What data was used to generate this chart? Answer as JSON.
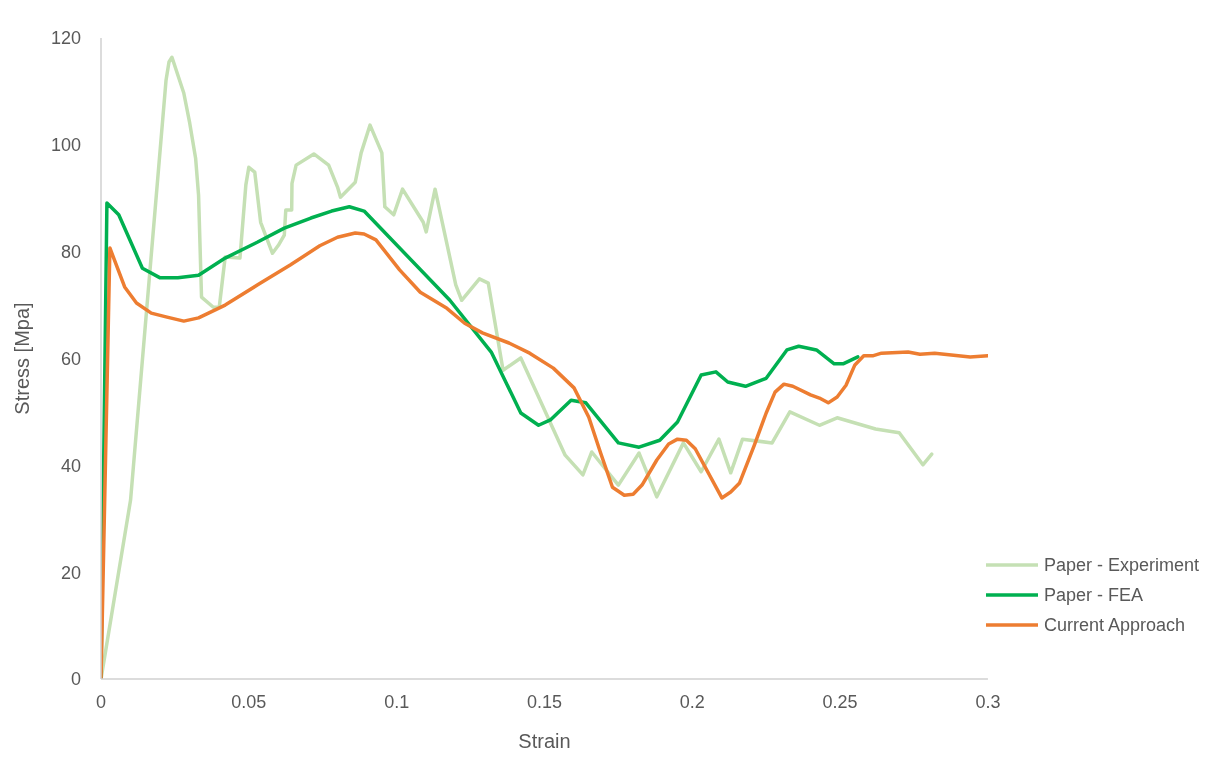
{
  "chart_data": {
    "type": "line",
    "xlabel": "Strain",
    "ylabel": "Stress [Mpa]",
    "xlim": [
      0,
      0.3
    ],
    "xticks": [
      0,
      0.05,
      0.1,
      0.15,
      0.2,
      0.25,
      0.3
    ],
    "ylim": [
      0,
      120
    ],
    "yticks": [
      0,
      20,
      40,
      60,
      80,
      100,
      120
    ],
    "grid": false,
    "legend": "bottom right",
    "series": [
      {
        "name": "Paper - Experiment",
        "color": "#c5e0b4",
        "x": [
          0,
          0.01,
          0.022,
          0.023,
          0.024,
          0.028,
          0.03,
          0.032,
          0.033,
          0.034,
          0.038,
          0.04,
          0.042,
          0.047,
          0.049,
          0.05,
          0.052,
          0.054,
          0.058,
          0.06,
          0.062,
          0.0625,
          0.0645,
          0.0646,
          0.066,
          0.072,
          0.077,
          0.08,
          0.081,
          0.086,
          0.088,
          0.091,
          0.095,
          0.096,
          0.099,
          0.102,
          0.109,
          0.11,
          0.113,
          0.12,
          0.122,
          0.128,
          0.131,
          0.136,
          0.142,
          0.157,
          0.163,
          0.166,
          0.175,
          0.182,
          0.188,
          0.197,
          0.203,
          0.209,
          0.213,
          0.217,
          0.227,
          0.233,
          0.243,
          0.249,
          0.262,
          0.27,
          0.278,
          0.281
        ],
        "values": [
          0,
          33.5,
          112.1,
          115.5,
          116.4,
          109.7,
          104.1,
          97.5,
          90.6,
          71.5,
          69.6,
          69.6,
          79,
          78.8,
          92.5,
          95.8,
          94.9,
          85.5,
          79.7,
          81.2,
          83.1,
          87.8,
          87.8,
          92.8,
          96.2,
          98.3,
          96.2,
          92.1,
          90.2,
          93,
          98.5,
          103.7,
          98.5,
          88.4,
          86.9,
          91.7,
          85.5,
          83.7,
          91.7,
          73.8,
          70.9,
          74.9,
          74.1,
          57.8,
          60.1,
          41.9,
          38.2,
          42.5,
          36.3,
          42.3,
          34.1,
          44.2,
          38.8,
          44.9,
          38.6,
          44.9,
          44.2,
          50,
          47.5,
          48.9,
          46.8,
          46.1,
          40.1,
          42.1
        ]
      },
      {
        "name": "Paper - FEA",
        "color": "#00b050",
        "x": [
          0,
          0.002,
          0.006,
          0.014,
          0.02,
          0.026,
          0.033,
          0.042,
          0.053,
          0.062,
          0.071,
          0.078,
          0.084,
          0.089,
          0.118,
          0.132,
          0.142,
          0.148,
          0.152,
          0.159,
          0.164,
          0.175,
          0.182,
          0.189,
          0.195,
          0.203,
          0.208,
          0.212,
          0.218,
          0.225,
          0.232,
          0.236,
          0.242,
          0.248,
          0.251,
          0.256
        ],
        "values": [
          0,
          89.1,
          86.9,
          76.9,
          75.1,
          75.1,
          75.6,
          78.8,
          81.8,
          84.4,
          86.3,
          87.6,
          88.4,
          87.6,
          70.9,
          61.2,
          49.8,
          47.5,
          48.5,
          52.2,
          51.7,
          44.2,
          43.4,
          44.7,
          48.1,
          56.9,
          57.5,
          55.6,
          54.8,
          56.3,
          61.6,
          62.3,
          61.6,
          59,
          59,
          60.3
        ]
      },
      {
        "name": "Current Approach",
        "color": "#ed7d31",
        "x": [
          0,
          0.003,
          0.008,
          0.012,
          0.017,
          0.022,
          0.028,
          0.033,
          0.042,
          0.053,
          0.064,
          0.074,
          0.08,
          0.086,
          0.089,
          0.093,
          0.101,
          0.108,
          0.117,
          0.123,
          0.129,
          0.138,
          0.145,
          0.153,
          0.16,
          0.165,
          0.169,
          0.173,
          0.177,
          0.18,
          0.183,
          0.188,
          0.192,
          0.195,
          0.198,
          0.201,
          0.21,
          0.213,
          0.216,
          0.221,
          0.225,
          0.228,
          0.231,
          0.234,
          0.24,
          0.243,
          0.246,
          0.249,
          0.252,
          0.255,
          0.258,
          0.261,
          0.264,
          0.273,
          0.277,
          0.282,
          0.294,
          0.3
        ],
        "values": [
          0,
          80.7,
          73.4,
          70.4,
          68.5,
          67.8,
          67,
          67.6,
          70,
          73.8,
          77.5,
          81.1,
          82.7,
          83.5,
          83.3,
          82.2,
          76.6,
          72.4,
          69.4,
          66.6,
          64.8,
          62.9,
          61,
          58.2,
          54.5,
          49,
          42.3,
          35.9,
          34.4,
          34.6,
          36.3,
          41,
          44,
          44.9,
          44.7,
          43.1,
          33.9,
          35,
          36.7,
          43.8,
          49.8,
          53.7,
          55.2,
          54.8,
          53.2,
          52.6,
          51.7,
          52.8,
          55,
          58.8,
          60.5,
          60.5,
          61,
          61.2,
          60.8,
          61,
          60.3,
          60.5
        ]
      }
    ]
  }
}
